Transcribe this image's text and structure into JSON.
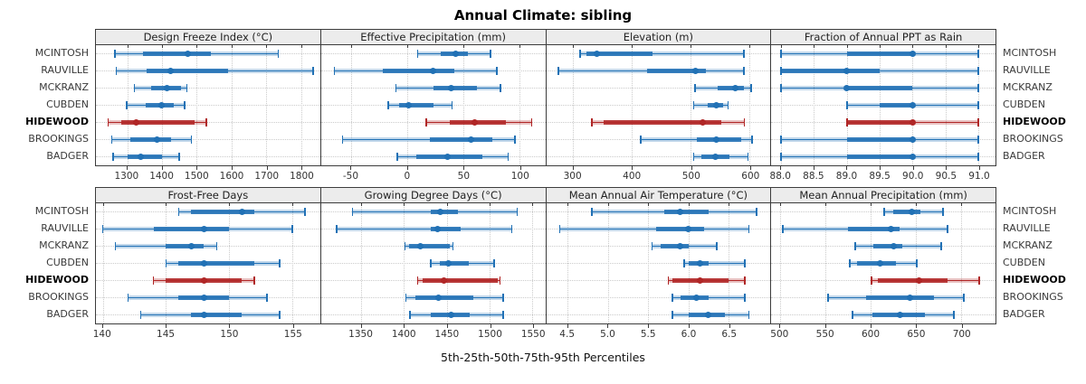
{
  "title": "Annual Climate: sibling",
  "xlabel": "5th-25th-50th-75th-95th Percentiles",
  "colors": {
    "series_blue": "#2171b5",
    "highlight_red": "#b02626",
    "grid": "#cbcbcb",
    "header_bg": "#ececec",
    "border": "#3c3c3c"
  },
  "stations": [
    {
      "label": "MCINTOSH",
      "highlight": false
    },
    {
      "label": "RAUVILLE",
      "highlight": false
    },
    {
      "label": "MCKRANZ",
      "highlight": false
    },
    {
      "label": "CUBDEN",
      "highlight": false
    },
    {
      "label": "HIDEWOOD",
      "highlight": true
    },
    {
      "label": "BROOKINGS",
      "highlight": false
    },
    {
      "label": "BADGER",
      "highlight": false
    }
  ],
  "chart_data": {
    "type": "percentile-dotplot",
    "percentiles": [
      "5th",
      "25th",
      "50th",
      "75th",
      "95th"
    ],
    "layout": {
      "rows": 2,
      "cols": 4,
      "legend": "none",
      "grid": "dotted-at-ticks"
    },
    "panels": [
      {
        "title": "Design Freeze Index (°C)",
        "domain": [
          1210,
          1855
        ],
        "tick_values": [
          1300,
          1400,
          1500,
          1600,
          1700,
          1800
        ],
        "tick_labels": [
          "1300",
          "1400",
          "1500",
          "1600",
          "1700",
          "1800"
        ],
        "values": [
          [
            1265,
            1345,
            1475,
            1540,
            1735
          ],
          [
            1268,
            1357,
            1426,
            1591,
            1835
          ],
          [
            1320,
            1370,
            1415,
            1455,
            1472
          ],
          [
            1298,
            1352,
            1400,
            1435,
            1465
          ],
          [
            1245,
            1283,
            1326,
            1495,
            1528
          ],
          [
            1255,
            1310,
            1385,
            1425,
            1485
          ],
          [
            1260,
            1300,
            1340,
            1400,
            1450
          ]
        ]
      },
      {
        "title": "Effective Precipitation (mm)",
        "domain": [
          -77,
          123
        ],
        "tick_values": [
          -50,
          0,
          50,
          100
        ],
        "tick_labels": [
          "-50",
          "0",
          "50",
          "100"
        ],
        "values": [
          [
            9,
            30,
            43,
            54,
            74
          ],
          [
            -65,
            -22,
            23,
            42,
            80
          ],
          [
            -10,
            23,
            39,
            62,
            83
          ],
          [
            -17,
            -7,
            1,
            23,
            40
          ],
          [
            17,
            38,
            60,
            88,
            111
          ],
          [
            -58,
            20,
            57,
            76,
            96
          ],
          [
            -9,
            8,
            36,
            67,
            90
          ]
        ]
      },
      {
        "title": "Elevation (m)",
        "domain": [
          254,
          635
        ],
        "tick_values": [
          300,
          400,
          500,
          600
        ],
        "tick_labels": [
          "300",
          "400",
          "500",
          "600"
        ],
        "values": [
          [
            312,
            322,
            340,
            435,
            590
          ],
          [
            275,
            425,
            507,
            525,
            590
          ],
          [
            507,
            545,
            576,
            590,
            602
          ],
          [
            505,
            528,
            543,
            555,
            563
          ],
          [
            332,
            351,
            520,
            551,
            591
          ],
          [
            415,
            510,
            543,
            585,
            604
          ],
          [
            505,
            518,
            542,
            565,
            597
          ]
        ]
      },
      {
        "title": "Fraction of Annual PPT as Rain",
        "domain": [
          87.85,
          91.26
        ],
        "tick_values": [
          88.0,
          88.5,
          89.0,
          89.5,
          90.0,
          90.5,
          91.0
        ],
        "tick_labels": [
          "88.0",
          "88.5",
          "89.0",
          "89.5",
          "90.0",
          "90.5",
          "91.0"
        ],
        "values": [
          [
            88,
            89,
            90,
            90,
            91
          ],
          [
            88,
            88,
            89,
            89.5,
            91
          ],
          [
            88,
            89,
            89,
            90,
            91
          ],
          [
            89,
            89.5,
            90,
            90,
            91
          ],
          [
            89,
            89,
            90,
            90,
            91
          ],
          [
            88,
            89,
            90,
            90,
            91
          ],
          [
            88,
            89,
            90,
            90,
            91
          ]
        ]
      },
      {
        "title": "Frost-Free Days",
        "domain": [
          139.45,
          157.2
        ],
        "tick_values": [
          140,
          145,
          150,
          155
        ],
        "tick_labels": [
          "140",
          "145",
          "150",
          "155"
        ],
        "values": [
          [
            146,
            147,
            151,
            152,
            156
          ],
          [
            140,
            144,
            148,
            150,
            155
          ],
          [
            141,
            145,
            147,
            148,
            149
          ],
          [
            145,
            146,
            148,
            152,
            154
          ],
          [
            144,
            145,
            148,
            151,
            152
          ],
          [
            142,
            146,
            148,
            150,
            153
          ],
          [
            143,
            147,
            148,
            151,
            154
          ]
        ]
      },
      {
        "title": "Growing Degree Days (°C)",
        "domain": [
          1303,
          1565
        ],
        "tick_values": [
          1350,
          1400,
          1450,
          1500,
          1550
        ],
        "tick_labels": [
          "1350",
          "1400",
          "1450",
          "1500",
          "1550"
        ],
        "values": [
          [
            1340,
            1431,
            1442,
            1463,
            1532
          ],
          [
            1321,
            1431,
            1439,
            1466,
            1526
          ],
          [
            1401,
            1406,
            1419,
            1453,
            1457
          ],
          [
            1431,
            1442,
            1452,
            1476,
            1505
          ],
          [
            1416,
            1422,
            1447,
            1510,
            1512
          ],
          [
            1402,
            1413,
            1440,
            1481,
            1516
          ],
          [
            1407,
            1431,
            1455,
            1477,
            1516
          ]
        ]
      },
      {
        "title": "Mean Annual Air Temperature (°C)",
        "domain": [
          4.23,
          7.02
        ],
        "tick_values": [
          4.5,
          5.0,
          5.5,
          6.0,
          6.5
        ],
        "tick_labels": [
          "4.5",
          "5.0",
          "5.5",
          "6.0",
          "6.5"
        ],
        "values": [
          [
            4.8,
            5.7,
            5.9,
            6.25,
            6.85
          ],
          [
            4.4,
            5.6,
            6.0,
            6.2,
            6.75
          ],
          [
            5.55,
            5.65,
            5.9,
            6.0,
            6.35
          ],
          [
            5.95,
            6.0,
            6.15,
            6.25,
            6.7
          ],
          [
            5.75,
            5.8,
            6.15,
            6.5,
            6.7
          ],
          [
            5.8,
            5.9,
            6.1,
            6.25,
            6.7
          ],
          [
            5.8,
            6.0,
            6.25,
            6.45,
            6.75
          ]
        ]
      },
      {
        "title": "Mean Annual Precipitation (mm)",
        "domain": [
          490,
          738
        ],
        "tick_values": [
          500,
          550,
          600,
          650,
          700
        ],
        "tick_labels": [
          "500",
          "550",
          "600",
          "650",
          "700"
        ],
        "values": [
          [
            615,
            625,
            645,
            655,
            680
          ],
          [
            503,
            575,
            622,
            632,
            685
          ],
          [
            583,
            603,
            625,
            635,
            678
          ],
          [
            577,
            585,
            610,
            628,
            651
          ],
          [
            601,
            608,
            653,
            685,
            720
          ],
          [
            553,
            595,
            643,
            670,
            703
          ],
          [
            580,
            602,
            632,
            660,
            692
          ]
        ]
      }
    ]
  }
}
